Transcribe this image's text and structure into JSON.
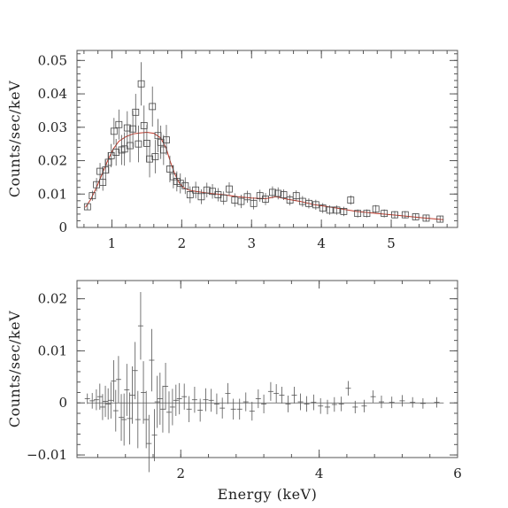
{
  "colors": {
    "data": "#444444",
    "model": "#c0392b",
    "frame": "#555555"
  },
  "chart_data": [
    {
      "type": "scatter",
      "panel": "spectrum",
      "xlabel": "",
      "ylabel": "Counts/sec/keV",
      "xlim": [
        0.5,
        5.95
      ],
      "ylim": [
        0,
        0.053
      ],
      "xticks": [
        1,
        2,
        3,
        4,
        5
      ],
      "xtick_labels": [
        "1",
        "2",
        "3",
        "4",
        "5"
      ],
      "yticks": [
        0,
        0.01,
        0.02,
        0.03,
        0.04,
        0.05
      ],
      "ytick_labels": [
        "0",
        "0.01",
        "0.02",
        "0.03",
        "0.04",
        "0.05"
      ],
      "series": [
        {
          "marker": "square",
          "with_error_bars": true,
          "points": [
            {
              "x": 0.65,
              "y": 0.0062,
              "err": 0.001
            },
            {
              "x": 0.72,
              "y": 0.0095,
              "err": 0.0015
            },
            {
              "x": 0.78,
              "y": 0.0128,
              "err": 0.002
            },
            {
              "x": 0.83,
              "y": 0.0168,
              "err": 0.0025
            },
            {
              "x": 0.87,
              "y": 0.0135,
              "err": 0.0025
            },
            {
              "x": 0.91,
              "y": 0.0172,
              "err": 0.003
            },
            {
              "x": 0.95,
              "y": 0.0195,
              "err": 0.003
            },
            {
              "x": 0.99,
              "y": 0.0215,
              "err": 0.0035
            },
            {
              "x": 1.03,
              "y": 0.0288,
              "err": 0.004
            },
            {
              "x": 1.06,
              "y": 0.0225,
              "err": 0.004
            },
            {
              "x": 1.1,
              "y": 0.0308,
              "err": 0.0045
            },
            {
              "x": 1.14,
              "y": 0.0232,
              "err": 0.0045
            },
            {
              "x": 1.18,
              "y": 0.0235,
              "err": 0.005
            },
            {
              "x": 1.22,
              "y": 0.0298,
              "err": 0.005
            },
            {
              "x": 1.26,
              "y": 0.0245,
              "err": 0.005
            },
            {
              "x": 1.3,
              "y": 0.0295,
              "err": 0.0055
            },
            {
              "x": 1.34,
              "y": 0.0345,
              "err": 0.0055
            },
            {
              "x": 1.38,
              "y": 0.025,
              "err": 0.0055
            },
            {
              "x": 1.42,
              "y": 0.043,
              "err": 0.0065
            },
            {
              "x": 1.46,
              "y": 0.0305,
              "err": 0.006
            },
            {
              "x": 1.5,
              "y": 0.0252,
              "err": 0.0055
            },
            {
              "x": 1.54,
              "y": 0.0205,
              "err": 0.0055
            },
            {
              "x": 1.58,
              "y": 0.0362,
              "err": 0.006
            },
            {
              "x": 1.62,
              "y": 0.0212,
              "err": 0.005
            },
            {
              "x": 1.66,
              "y": 0.0275,
              "err": 0.005
            },
            {
              "x": 1.7,
              "y": 0.0255,
              "err": 0.005
            },
            {
              "x": 1.74,
              "y": 0.0232,
              "err": 0.0045
            },
            {
              "x": 1.78,
              "y": 0.0262,
              "err": 0.0045
            },
            {
              "x": 1.83,
              "y": 0.0175,
              "err": 0.004
            },
            {
              "x": 1.88,
              "y": 0.0152,
              "err": 0.0035
            },
            {
              "x": 1.93,
              "y": 0.0138,
              "err": 0.003
            },
            {
              "x": 1.98,
              "y": 0.0132,
              "err": 0.003
            },
            {
              "x": 2.05,
              "y": 0.0125,
              "err": 0.0025
            },
            {
              "x": 2.12,
              "y": 0.0098,
              "err": 0.0025
            },
            {
              "x": 2.2,
              "y": 0.0112,
              "err": 0.0025
            },
            {
              "x": 2.28,
              "y": 0.0092,
              "err": 0.0022
            },
            {
              "x": 2.36,
              "y": 0.0112,
              "err": 0.0022
            },
            {
              "x": 2.44,
              "y": 0.0108,
              "err": 0.0022
            },
            {
              "x": 2.52,
              "y": 0.0098,
              "err": 0.002
            },
            {
              "x": 2.6,
              "y": 0.0088,
              "err": 0.002
            },
            {
              "x": 2.68,
              "y": 0.0115,
              "err": 0.002
            },
            {
              "x": 2.76,
              "y": 0.0082,
              "err": 0.002
            },
            {
              "x": 2.85,
              "y": 0.0078,
              "err": 0.002
            },
            {
              "x": 2.94,
              "y": 0.0092,
              "err": 0.0018
            },
            {
              "x": 3.03,
              "y": 0.0072,
              "err": 0.0018
            },
            {
              "x": 3.12,
              "y": 0.0095,
              "err": 0.0018
            },
            {
              "x": 3.2,
              "y": 0.0085,
              "err": 0.0018
            },
            {
              "x": 3.3,
              "y": 0.0105,
              "err": 0.0018
            },
            {
              "x": 3.38,
              "y": 0.0102,
              "err": 0.0018
            },
            {
              "x": 3.46,
              "y": 0.0098,
              "err": 0.0016
            },
            {
              "x": 3.55,
              "y": 0.0082,
              "err": 0.0016
            },
            {
              "x": 3.64,
              "y": 0.0095,
              "err": 0.0016
            },
            {
              "x": 3.73,
              "y": 0.0078,
              "err": 0.0016
            },
            {
              "x": 3.82,
              "y": 0.0072,
              "err": 0.0015
            },
            {
              "x": 3.92,
              "y": 0.0068,
              "err": 0.0015
            },
            {
              "x": 4.02,
              "y": 0.0058,
              "err": 0.0015
            },
            {
              "x": 4.12,
              "y": 0.0052,
              "err": 0.0014
            },
            {
              "x": 4.22,
              "y": 0.0052,
              "err": 0.0014
            },
            {
              "x": 4.32,
              "y": 0.0048,
              "err": 0.0014
            },
            {
              "x": 4.42,
              "y": 0.0082,
              "err": 0.0014
            },
            {
              "x": 4.52,
              "y": 0.0042,
              "err": 0.0012
            },
            {
              "x": 4.65,
              "y": 0.0042,
              "err": 0.0012
            },
            {
              "x": 4.78,
              "y": 0.0055,
              "err": 0.0012
            },
            {
              "x": 4.9,
              "y": 0.0042,
              "err": 0.0012
            },
            {
              "x": 5.05,
              "y": 0.0038,
              "err": 0.0011
            },
            {
              "x": 5.2,
              "y": 0.0038,
              "err": 0.0011
            },
            {
              "x": 5.35,
              "y": 0.0032,
              "err": 0.001
            },
            {
              "x": 5.5,
              "y": 0.0028,
              "err": 0.001
            },
            {
              "x": 5.7,
              "y": 0.0025,
              "err": 0.001
            }
          ]
        },
        {
          "line": "model",
          "x": [
            0.62,
            0.7,
            0.78,
            0.86,
            0.94,
            1.02,
            1.1,
            1.2,
            1.3,
            1.4,
            1.5,
            1.6,
            1.7,
            1.78,
            1.84,
            1.9,
            1.96,
            2.02,
            2.1,
            2.2,
            2.4,
            2.6,
            2.8,
            3.0,
            3.2,
            3.35,
            3.5,
            3.7,
            3.9,
            4.1,
            4.3,
            4.5,
            4.8,
            5.1,
            5.4,
            5.75
          ],
          "y": [
            0.006,
            0.0085,
            0.012,
            0.016,
            0.02,
            0.0235,
            0.0258,
            0.0272,
            0.028,
            0.0283,
            0.0285,
            0.0282,
            0.0268,
            0.0235,
            0.0195,
            0.016,
            0.0135,
            0.012,
            0.0112,
            0.0108,
            0.0102,
            0.0098,
            0.0092,
            0.0088,
            0.0086,
            0.0092,
            0.0085,
            0.0078,
            0.0068,
            0.0062,
            0.0055,
            0.0048,
            0.0042,
            0.0036,
            0.003,
            0.0023
          ]
        }
      ]
    },
    {
      "type": "scatter",
      "panel": "residuals",
      "xlabel": "Energy (keV)",
      "ylabel": "Counts/sec/keV",
      "xlim": [
        0.5,
        6
      ],
      "ylim": [
        -0.0105,
        0.0235
      ],
      "xticks": [
        2,
        4,
        6
      ],
      "xtick_labels": [
        "2",
        "4",
        "6"
      ],
      "yticks": [
        -0.01,
        0,
        0.01,
        0.02
      ],
      "ytick_labels": [
        "−0.01",
        "0",
        "0.01",
        "0.02"
      ],
      "series": [
        {
          "marker": "cross",
          "with_error_bars": true,
          "points": [
            {
              "x": 0.65,
              "y": 0.0008,
              "err": 0.001
            },
            {
              "x": 0.72,
              "y": 0.0004,
              "err": 0.0015
            },
            {
              "x": 0.78,
              "y": 0.0006,
              "err": 0.002
            },
            {
              "x": 0.83,
              "y": 0.0012,
              "err": 0.0025
            },
            {
              "x": 0.87,
              "y": -0.0008,
              "err": 0.0025
            },
            {
              "x": 0.91,
              "y": 0.0003,
              "err": 0.003
            },
            {
              "x": 0.95,
              "y": -0.0002,
              "err": 0.003
            },
            {
              "x": 0.99,
              "y": 0.0005,
              "err": 0.0035
            },
            {
              "x": 1.03,
              "y": 0.0042,
              "err": 0.004
            },
            {
              "x": 1.06,
              "y": -0.0015,
              "err": 0.004
            },
            {
              "x": 1.1,
              "y": 0.0045,
              "err": 0.0045
            },
            {
              "x": 1.14,
              "y": -0.0028,
              "err": 0.0045
            },
            {
              "x": 1.18,
              "y": -0.0032,
              "err": 0.005
            },
            {
              "x": 1.22,
              "y": 0.0025,
              "err": 0.005
            },
            {
              "x": 1.26,
              "y": -0.003,
              "err": 0.005
            },
            {
              "x": 1.3,
              "y": 0.0015,
              "err": 0.0055
            },
            {
              "x": 1.34,
              "y": 0.0062,
              "err": 0.0055
            },
            {
              "x": 1.38,
              "y": -0.0032,
              "err": 0.0055
            },
            {
              "x": 1.42,
              "y": 0.0148,
              "err": 0.0065
            },
            {
              "x": 1.46,
              "y": 0.002,
              "err": 0.006
            },
            {
              "x": 1.5,
              "y": -0.0032,
              "err": 0.0055
            },
            {
              "x": 1.54,
              "y": -0.0078,
              "err": 0.0055
            },
            {
              "x": 1.58,
              "y": 0.0082,
              "err": 0.006
            },
            {
              "x": 1.62,
              "y": -0.0062,
              "err": 0.005
            },
            {
              "x": 1.66,
              "y": 0.0002,
              "err": 0.005
            },
            {
              "x": 1.7,
              "y": 0.0008,
              "err": 0.005
            },
            {
              "x": 1.74,
              "y": -0.0012,
              "err": 0.0045
            },
            {
              "x": 1.78,
              "y": 0.0032,
              "err": 0.0045
            },
            {
              "x": 1.83,
              "y": -0.0018,
              "err": 0.004
            },
            {
              "x": 1.88,
              "y": -0.0008,
              "err": 0.0035
            },
            {
              "x": 1.93,
              "y": 0.0005,
              "err": 0.003
            },
            {
              "x": 1.98,
              "y": 0.0008,
              "err": 0.003
            },
            {
              "x": 2.05,
              "y": 0.0012,
              "err": 0.0025
            },
            {
              "x": 2.12,
              "y": -0.0012,
              "err": 0.0025
            },
            {
              "x": 2.2,
              "y": 0.0006,
              "err": 0.0025
            },
            {
              "x": 2.28,
              "y": -0.0014,
              "err": 0.0022
            },
            {
              "x": 2.36,
              "y": 0.0006,
              "err": 0.0022
            },
            {
              "x": 2.44,
              "y": 0.0005,
              "err": 0.0022
            },
            {
              "x": 2.52,
              "y": -0.0002,
              "err": 0.002
            },
            {
              "x": 2.6,
              "y": -0.001,
              "err": 0.002
            },
            {
              "x": 2.68,
              "y": 0.0018,
              "err": 0.002
            },
            {
              "x": 2.76,
              "y": -0.0012,
              "err": 0.002
            },
            {
              "x": 2.85,
              "y": -0.0012,
              "err": 0.002
            },
            {
              "x": 2.94,
              "y": 0.0002,
              "err": 0.0018
            },
            {
              "x": 3.03,
              "y": -0.0016,
              "err": 0.0018
            },
            {
              "x": 3.12,
              "y": 0.0008,
              "err": 0.0018
            },
            {
              "x": 3.2,
              "y": -0.0002,
              "err": 0.0018
            },
            {
              "x": 3.3,
              "y": 0.0022,
              "err": 0.0018
            },
            {
              "x": 3.38,
              "y": 0.0018,
              "err": 0.0018
            },
            {
              "x": 3.46,
              "y": 0.0015,
              "err": 0.0016
            },
            {
              "x": 3.55,
              "y": -0.0002,
              "err": 0.0016
            },
            {
              "x": 3.64,
              "y": 0.0015,
              "err": 0.0016
            },
            {
              "x": 3.73,
              "y": 0.0002,
              "err": 0.0016
            },
            {
              "x": 3.82,
              "y": -0.0002,
              "err": 0.0015
            },
            {
              "x": 3.92,
              "y": 0.0001,
              "err": 0.0015
            },
            {
              "x": 4.02,
              "y": -0.0006,
              "err": 0.0015
            },
            {
              "x": 4.12,
              "y": -0.0008,
              "err": 0.0014
            },
            {
              "x": 4.22,
              "y": -0.0003,
              "err": 0.0014
            },
            {
              "x": 4.32,
              "y": -0.0002,
              "err": 0.0014
            },
            {
              "x": 4.42,
              "y": 0.0028,
              "err": 0.0014
            },
            {
              "x": 4.52,
              "y": -0.0008,
              "err": 0.0012
            },
            {
              "x": 4.65,
              "y": -0.0006,
              "err": 0.0012
            },
            {
              "x": 4.78,
              "y": 0.0012,
              "err": 0.0012
            },
            {
              "x": 4.9,
              "y": 0.0002,
              "err": 0.0012
            },
            {
              "x": 5.05,
              "y": 0.0001,
              "err": 0.0011
            },
            {
              "x": 5.2,
              "y": 0.0004,
              "err": 0.0011
            },
            {
              "x": 5.35,
              "y": 0.0001,
              "err": 0.001
            },
            {
              "x": 5.5,
              "y": -0.0001,
              "err": 0.001
            },
            {
              "x": 5.7,
              "y": 0.0001,
              "err": 0.001
            }
          ]
        }
      ],
      "reference_line_y": 0
    }
  ]
}
